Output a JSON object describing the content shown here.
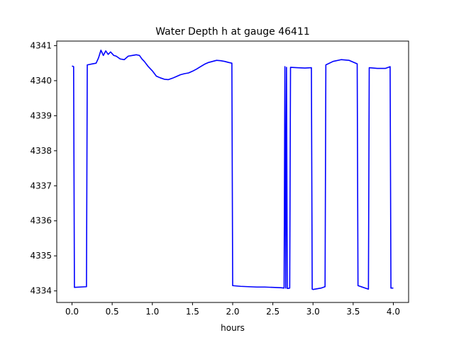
{
  "chart_data": {
    "type": "line",
    "title": "Water Depth h at gauge 46411",
    "xlabel": "hours",
    "ylabel": "",
    "xlim": [
      -0.19,
      4.19
    ],
    "ylim": [
      4333.67,
      4341.13
    ],
    "xticks": [
      0.0,
      0.5,
      1.0,
      1.5,
      2.0,
      2.5,
      3.0,
      3.5,
      4.0
    ],
    "xtick_labels": [
      "0.0",
      "0.5",
      "1.0",
      "1.5",
      "2.0",
      "2.5",
      "3.0",
      "3.5",
      "4.0"
    ],
    "yticks": [
      4334,
      4335,
      4336,
      4337,
      4338,
      4339,
      4340,
      4341
    ],
    "ytick_labels": [
      "4334",
      "4335",
      "4336",
      "4337",
      "4338",
      "4339",
      "4340",
      "4341"
    ],
    "grid": false,
    "series": [
      {
        "color": "#0000ff",
        "x": [
          0.0,
          0.02,
          0.03,
          0.18,
          0.19,
          0.3,
          0.33,
          0.36,
          0.39,
          0.42,
          0.45,
          0.48,
          0.52,
          0.55,
          0.6,
          0.65,
          0.7,
          0.75,
          0.8,
          0.84,
          0.87,
          0.9,
          0.95,
          1.0,
          1.05,
          1.1,
          1.15,
          1.2,
          1.25,
          1.3,
          1.35,
          1.4,
          1.45,
          1.5,
          1.55,
          1.6,
          1.65,
          1.7,
          1.75,
          1.8,
          1.85,
          1.9,
          1.95,
          1.99,
          2.0,
          2.1,
          2.2,
          2.3,
          2.4,
          2.5,
          2.6,
          2.64,
          2.65,
          2.66,
          2.67,
          2.68,
          2.69,
          2.71,
          2.72,
          2.8,
          2.9,
          2.98,
          2.99,
          3.0,
          3.1,
          3.15,
          3.16,
          3.25,
          3.35,
          3.45,
          3.55,
          3.56,
          3.69,
          3.7,
          3.8,
          3.9,
          3.96,
          3.97,
          4.0
        ],
        "y": [
          4340.42,
          4340.4,
          4334.1,
          4334.12,
          4340.45,
          4340.5,
          4340.65,
          4340.87,
          4340.72,
          4340.85,
          4340.75,
          4340.82,
          4340.72,
          4340.7,
          4340.62,
          4340.6,
          4340.7,
          4340.72,
          4340.74,
          4340.72,
          4340.62,
          4340.55,
          4340.4,
          4340.28,
          4340.13,
          4340.08,
          4340.04,
          4340.03,
          4340.07,
          4340.12,
          4340.17,
          4340.2,
          4340.22,
          4340.27,
          4340.33,
          4340.4,
          4340.47,
          4340.52,
          4340.55,
          4340.58,
          4340.57,
          4340.55,
          4340.52,
          4340.5,
          4334.15,
          4334.13,
          4334.12,
          4334.11,
          4334.11,
          4334.1,
          4334.09,
          4334.08,
          4340.4,
          4334.08,
          4340.38,
          4334.07,
          4334.07,
          4334.08,
          4340.38,
          4340.37,
          4340.36,
          4340.37,
          4334.05,
          4334.04,
          4334.08,
          4334.12,
          4340.45,
          4340.55,
          4340.6,
          4340.58,
          4340.48,
          4334.15,
          4334.05,
          4340.37,
          4340.35,
          4340.35,
          4340.4,
          4334.08,
          4334.08
        ]
      }
    ]
  }
}
